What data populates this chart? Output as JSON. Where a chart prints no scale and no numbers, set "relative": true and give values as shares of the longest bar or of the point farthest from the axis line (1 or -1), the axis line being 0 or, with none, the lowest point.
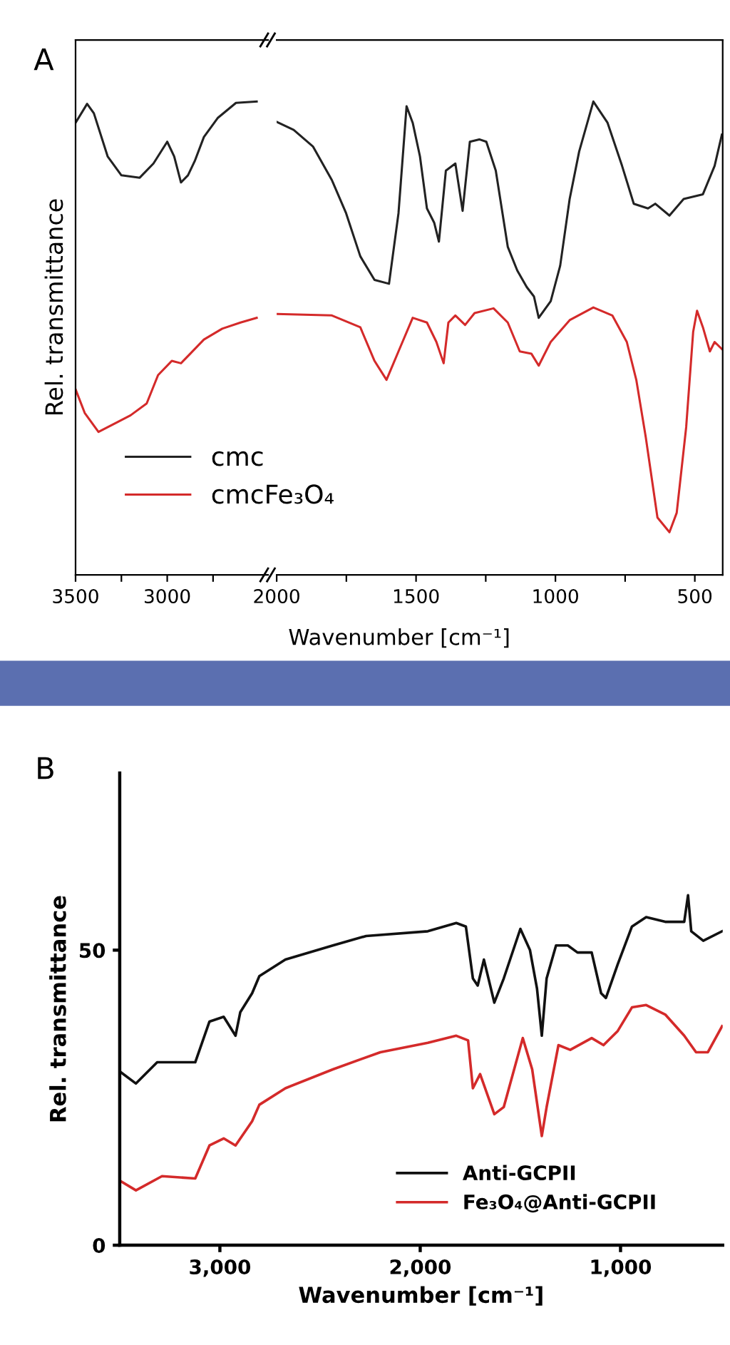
{
  "chart_data": [
    {
      "type": "line",
      "title": "A",
      "ylabel": "Rel. transmittance",
      "relative": true,
      "xlim": [
        3500,
        2450
      ],
      "xticks": [
        3500,
        {
          "value": 3250,
          "label": null
        },
        3000,
        {
          "value": 2750,
          "label": null
        }
      ],
      "tick_labels": "x",
      "grid": false,
      "series": [
        {
          "color": "#222222",
          "x": [
            3500,
            3437,
            3400,
            3325,
            3250,
            3150,
            3075,
            3000,
            2962,
            2925,
            2887,
            2850,
            2800,
            2725,
            2625,
            2512
          ],
          "values": [
            0.955,
            0.995,
            0.975,
            0.884,
            0.844,
            0.839,
            0.869,
            0.915,
            0.884,
            0.829,
            0.844,
            0.874,
            0.925,
            0.965,
            0.997,
            1.0
          ]
        },
        {
          "color": "#d42a2a",
          "x": [
            3500,
            3450,
            3375,
            3275,
            3200,
            3112,
            3050,
            2975,
            2925,
            2875,
            2800,
            2700,
            2600,
            2512
          ],
          "values": [
            0.392,
            0.342,
            0.302,
            0.322,
            0.337,
            0.362,
            0.422,
            0.452,
            0.447,
            0.467,
            0.497,
            0.52,
            0.533,
            0.543
          ]
        }
      ]
    },
    {
      "type": "line",
      "xlabel": "Wavenumber [cm⁻¹]",
      "relative": true,
      "xlim": [
        2000,
        400
      ],
      "xticks": [
        2000,
        {
          "value": 1750,
          "label": null
        },
        1500,
        {
          "value": 1250,
          "label": null
        },
        1000,
        {
          "value": 750,
          "label": null
        },
        500
      ],
      "tick_labels": "x",
      "legend": "bottom left",
      "grid": false,
      "series": [
        {
          "name": "cmc",
          "color": "#222222",
          "x": [
            2000,
            1939,
            1870,
            1802,
            1751,
            1700,
            1649,
            1597,
            1563,
            1534,
            1512,
            1486,
            1461,
            1435,
            1418,
            1393,
            1359,
            1333,
            1307,
            1273,
            1248,
            1214,
            1171,
            1137,
            1103,
            1077,
            1060,
            1017,
            983,
            949,
            915,
            864,
            813,
            761,
            719,
            668,
            642,
            591,
            540,
            471,
            429,
            403
          ],
          "values": [
            0.957,
            0.94,
            0.905,
            0.834,
            0.764,
            0.673,
            0.623,
            0.615,
            0.764,
            0.99,
            0.955,
            0.884,
            0.774,
            0.744,
            0.704,
            0.854,
            0.869,
            0.769,
            0.915,
            0.92,
            0.915,
            0.854,
            0.693,
            0.643,
            0.608,
            0.588,
            0.543,
            0.578,
            0.653,
            0.794,
            0.894,
            1.0,
            0.955,
            0.864,
            0.784,
            0.774,
            0.784,
            0.759,
            0.794,
            0.804,
            0.864,
            0.93
          ]
        },
        {
          "name": "cmcFe₃O₄",
          "color": "#d42a2a",
          "x": [
            2000,
            1802,
            1700,
            1649,
            1606,
            1563,
            1512,
            1461,
            1427,
            1401,
            1384,
            1359,
            1324,
            1290,
            1222,
            1171,
            1128,
            1086,
            1060,
            1017,
            949,
            864,
            796,
            744,
            710,
            676,
            634,
            591,
            565,
            531,
            506,
            492,
            471,
            446,
            429,
            403
          ],
          "values": [
            0.551,
            0.548,
            0.523,
            0.452,
            0.412,
            0.472,
            0.543,
            0.533,
            0.492,
            0.447,
            0.533,
            0.548,
            0.528,
            0.553,
            0.563,
            0.533,
            0.472,
            0.467,
            0.442,
            0.492,
            0.538,
            0.565,
            0.548,
            0.492,
            0.412,
            0.291,
            0.121,
            0.09,
            0.131,
            0.312,
            0.513,
            0.558,
            0.523,
            0.472,
            0.492,
            0.477
          ]
        }
      ]
    },
    {
      "type": "line",
      "title": "B",
      "xlabel": "Wavenumber [cm⁻¹]",
      "ylabel": "Rel. transmittance",
      "xlim": [
        3500,
        490
      ],
      "xticks": [
        {
          "value": 3000,
          "label": "3,000"
        },
        {
          "value": 2000,
          "label": "2,000"
        },
        {
          "value": 1000,
          "label": "1,000"
        }
      ],
      "ylim": [
        0,
        80
      ],
      "yticks": [
        0,
        50
      ],
      "legend": "bottom right",
      "grid": false,
      "series": [
        {
          "name": "Anti-GCPII",
          "color": "#111111",
          "x": [
            3498,
            3419,
            3313,
            3123,
            3052,
            2981,
            2922,
            2898,
            2839,
            2803,
            2673,
            2436,
            2270,
            1962,
            1820,
            1772,
            1737,
            1713,
            1682,
            1630,
            1583,
            1500,
            1452,
            1417,
            1393,
            1369,
            1322,
            1263,
            1215,
            1144,
            1097,
            1073,
            1014,
            943,
            872,
            777,
            682,
            663,
            647,
            587,
            493
          ],
          "values": [
            29.4,
            27.4,
            31.0,
            31.0,
            37.9,
            38.7,
            35.5,
            39.5,
            42.7,
            45.6,
            48.4,
            50.8,
            52.4,
            53.2,
            54.6,
            54.0,
            45.2,
            44.0,
            48.4,
            41.1,
            45.2,
            53.6,
            50.0,
            43.5,
            35.5,
            45.2,
            50.8,
            50.8,
            49.6,
            49.6,
            42.7,
            41.9,
            47.6,
            54.0,
            55.6,
            54.8,
            54.8,
            59.3,
            53.2,
            51.6,
            53.2
          ]
        },
        {
          "name": "Fe₃O₄@Anti-GCPII",
          "color": "#d42a2a",
          "x": [
            3498,
            3419,
            3289,
            3123,
            3052,
            2981,
            2922,
            2839,
            2803,
            2673,
            2436,
            2199,
            1962,
            1820,
            1761,
            1737,
            1701,
            1630,
            1583,
            1488,
            1441,
            1393,
            1369,
            1310,
            1251,
            1144,
            1085,
            1014,
            943,
            872,
            777,
            682,
            623,
            564,
            493
          ],
          "values": [
            10.9,
            9.3,
            11.7,
            11.3,
            16.9,
            18.1,
            16.9,
            21.0,
            23.8,
            26.6,
            29.8,
            32.7,
            34.3,
            35.5,
            34.7,
            26.6,
            29.0,
            22.2,
            23.4,
            35.1,
            29.8,
            18.5,
            23.4,
            33.9,
            33.1,
            35.1,
            33.9,
            36.3,
            40.3,
            40.7,
            39.1,
            35.5,
            32.7,
            32.7,
            37.1
          ]
        }
      ]
    }
  ]
}
